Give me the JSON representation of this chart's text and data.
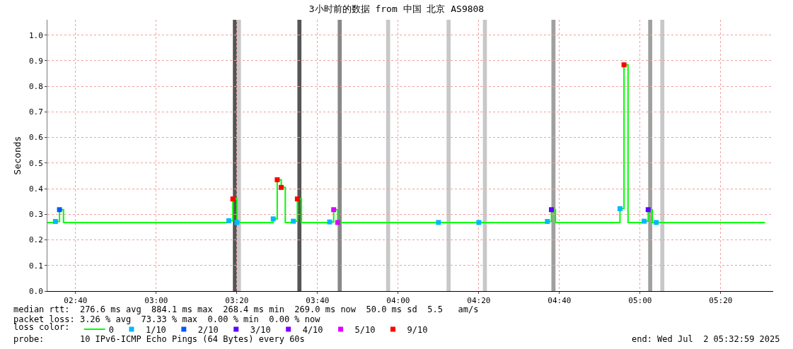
{
  "chart_data": {
    "type": "step",
    "title": "3小时前的数据 from 中国 北京 AS9808",
    "ylabel": "Seconds",
    "legend_title": "loss color:",
    "legend": "bottom",
    "grid": true,
    "xlim": [
      "2025-07-02T02:33",
      "2025-07-02T05:33"
    ],
    "xticks": [
      {
        "value": "2025-07-02T02:40",
        "label": "02:40"
      },
      {
        "value": "2025-07-02T03:00",
        "label": "03:00"
      },
      {
        "value": "2025-07-02T03:20",
        "label": "03:20"
      },
      {
        "value": "2025-07-02T03:40",
        "label": "03:40"
      },
      {
        "value": "2025-07-02T04:00",
        "label": "04:00"
      },
      {
        "value": "2025-07-02T04:20",
        "label": "04:20"
      },
      {
        "value": "2025-07-02T04:40",
        "label": "04:40"
      },
      {
        "value": "2025-07-02T05:00",
        "label": "05:00"
      },
      {
        "value": "2025-07-02T05:20",
        "label": "05:20"
      }
    ],
    "ylim": [
      0,
      1.06
    ],
    "yticks": [
      {
        "value": 0,
        "label": "0.0"
      },
      {
        "value": 0.1,
        "label": "0.1"
      },
      {
        "value": 0.2,
        "label": "0.2"
      },
      {
        "value": 0.3,
        "label": "0.3"
      },
      {
        "value": 0.4,
        "label": "0.4"
      },
      {
        "value": 0.5,
        "label": "0.5"
      },
      {
        "value": 0.6,
        "label": "0.6"
      },
      {
        "value": 0.7,
        "label": "0.7"
      },
      {
        "value": 0.8,
        "label": "0.8"
      },
      {
        "value": 0.9,
        "label": "0.9"
      },
      {
        "value": 1.0,
        "label": "1.0"
      }
    ],
    "series": [
      {
        "name": "0",
        "color": "#00ff00",
        "marker": "none",
        "x": [
          "2025-07-02T02:33",
          "2025-07-02T02:35",
          "2025-07-02T02:36",
          "2025-07-02T02:37",
          "2025-07-02T03:18",
          "2025-07-02T03:19",
          "2025-07-02T03:20",
          "2025-07-02T03:29",
          "2025-07-02T03:30",
          "2025-07-02T03:31",
          "2025-07-02T03:32",
          "2025-07-02T03:34",
          "2025-07-02T03:35",
          "2025-07-02T03:36",
          "2025-07-02T03:43",
          "2025-07-02T03:44",
          "2025-07-02T03:45",
          "2025-07-02T04:37",
          "2025-07-02T04:38",
          "2025-07-02T04:39",
          "2025-07-02T04:55",
          "2025-07-02T04:56",
          "2025-07-02T04:57",
          "2025-07-02T05:01",
          "2025-07-02T05:02",
          "2025-07-02T05:03",
          "2025-07-02T05:31"
        ],
        "values": [
          0.268,
          0.272,
          0.318,
          0.268,
          0.275,
          0.36,
          0.268,
          0.282,
          0.435,
          0.405,
          0.268,
          0.273,
          0.36,
          0.268,
          0.27,
          0.318,
          0.268,
          0.272,
          0.318,
          0.268,
          0.322,
          0.884,
          0.268,
          0.273,
          0.318,
          0.268,
          0.268
        ]
      },
      {
        "name": "1/10",
        "type": "scatter",
        "color": "#00b8ff",
        "marker": "square",
        "x": [
          "2025-07-02T02:35",
          "2025-07-02T03:18",
          "2025-07-02T03:20",
          "2025-07-02T03:29",
          "2025-07-02T03:34",
          "2025-07-02T03:43",
          "2025-07-02T04:10",
          "2025-07-02T04:20",
          "2025-07-02T04:37",
          "2025-07-02T04:55",
          "2025-07-02T05:01",
          "2025-07-02T05:04"
        ],
        "values": [
          0.272,
          0.275,
          0.268,
          0.282,
          0.273,
          0.27,
          0.268,
          0.268,
          0.272,
          0.322,
          0.273,
          0.268
        ]
      },
      {
        "name": "2/10",
        "type": "scatter",
        "color": "#0059ff",
        "marker": "square",
        "x": [
          "2025-07-02T02:36"
        ],
        "values": [
          0.318
        ]
      },
      {
        "name": "3/10",
        "type": "scatter",
        "color": "#5e00ff",
        "marker": "square",
        "x": [
          "2025-07-02T04:38",
          "2025-07-02T05:02"
        ],
        "values": [
          0.318,
          0.318
        ]
      },
      {
        "name": "4/10",
        "type": "scatter",
        "color": "#7e00ff",
        "marker": "square"
      },
      {
        "name": "5/10",
        "type": "scatter",
        "color": "#dd00ff",
        "marker": "square",
        "x": [
          "2025-07-02T03:44",
          "2025-07-02T03:45"
        ],
        "values": [
          0.318,
          0.268
        ]
      },
      {
        "name": "9/10",
        "type": "scatter",
        "color": "#ff0000",
        "marker": "square",
        "x": [
          "2025-07-02T03:19",
          "2025-07-02T03:30",
          "2025-07-02T03:31",
          "2025-07-02T03:35",
          "2025-07-02T04:56"
        ],
        "values": [
          0.36,
          0.435,
          0.405,
          0.36,
          0.884
        ]
      }
    ],
    "bands": [
      {
        "axis": "x",
        "from": "2025-07-02T03:19",
        "to": "2025-07-02T03:20",
        "color": "#555555"
      },
      {
        "axis": "x",
        "from": "2025-07-02T03:20",
        "to": "2025-07-02T03:21",
        "color": "#c8c8c8"
      },
      {
        "axis": "x",
        "from": "2025-07-02T03:35",
        "to": "2025-07-02T03:36",
        "color": "#555555"
      },
      {
        "axis": "x",
        "from": "2025-07-02T03:45",
        "to": "2025-07-02T03:46",
        "color": "#888888"
      },
      {
        "axis": "x",
        "from": "2025-07-02T03:57",
        "to": "2025-07-02T03:58",
        "color": "#c8c8c8"
      },
      {
        "axis": "x",
        "from": "2025-07-02T04:12",
        "to": "2025-07-02T04:13",
        "color": "#c8c8c8"
      },
      {
        "axis": "x",
        "from": "2025-07-02T04:21",
        "to": "2025-07-02T04:22",
        "color": "#c8c8c8"
      },
      {
        "axis": "x",
        "from": "2025-07-02T04:38",
        "to": "2025-07-02T04:39",
        "color": "#a0a0a0"
      },
      {
        "axis": "x",
        "from": "2025-07-02T05:02",
        "to": "2025-07-02T05:03",
        "color": "#a0a0a0"
      },
      {
        "axis": "x",
        "from": "2025-07-02T05:05",
        "to": "2025-07-02T05:06",
        "color": "#c8c8c8"
      }
    ],
    "annotations": [
      "median rtt:  276.6 ms avg  884.1 ms max  268.4 ms min  269.0 ms now  50.0 ms sd  5.5   am/s",
      "packet loss: 3.26 % avg  73.33 % max  0.00 % min  0.00 % now",
      "probe:       10 IPv6-ICMP Echo Pings (64 Bytes) every 60s",
      "end: Wed Jul  2 05:32:59 2025"
    ]
  }
}
